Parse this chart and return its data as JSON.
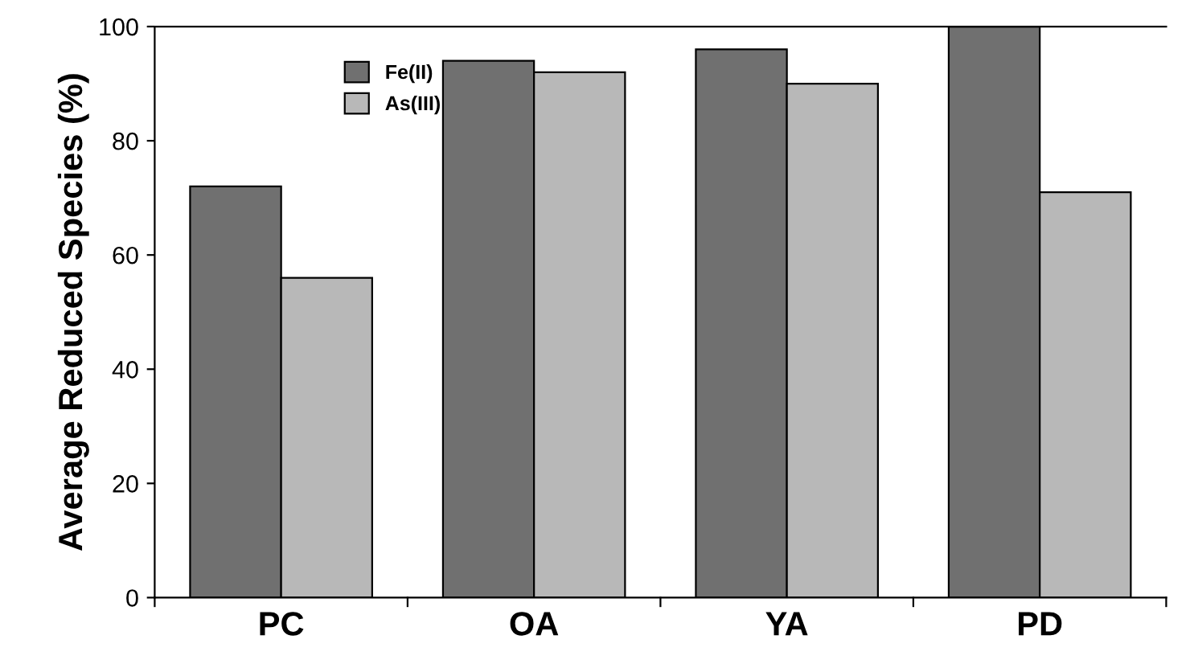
{
  "chart_data": {
    "type": "bar",
    "ylabel": "Average Reduced Species (%)",
    "categories": [
      "PC",
      "OA",
      "YA",
      "PD"
    ],
    "series": [
      {
        "name": "Fe(II)",
        "color": "#707070",
        "values": [
          72,
          94,
          96,
          100
        ]
      },
      {
        "name": "As(III)",
        "color": "#b8b8b8",
        "values": [
          56,
          92,
          90,
          71
        ]
      }
    ],
    "ylim": [
      0,
      100
    ],
    "yticks": [
      0,
      20,
      40,
      60,
      80,
      100
    ],
    "grid": false,
    "legend": "top left"
  }
}
